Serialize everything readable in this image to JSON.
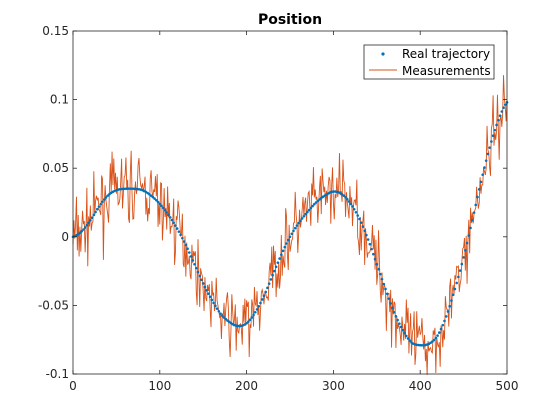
{
  "chart_data": {
    "type": "line",
    "title": "Position",
    "xlabel": "",
    "ylabel": "",
    "xlim": [
      0,
      500
    ],
    "ylim": [
      -0.1,
      0.15
    ],
    "xticks": [
      0,
      100,
      200,
      300,
      400,
      500
    ],
    "yticks": [
      -0.1,
      -0.05,
      0,
      0.05,
      0.1,
      0.15
    ],
    "xtick_labels": [
      "0",
      "100",
      "200",
      "300",
      "400",
      "500"
    ],
    "ytick_labels": [
      "-0.1",
      "-0.05",
      "0",
      "0.05",
      "0.1",
      "0.15"
    ],
    "grid": false,
    "legend_position": "top-right",
    "series": [
      {
        "name": "Real trajectory",
        "style": "dots",
        "color": "#0072BD",
        "x": [
          0,
          10,
          20,
          30,
          40,
          50,
          60,
          70,
          80,
          90,
          100,
          110,
          120,
          130,
          140,
          150,
          160,
          170,
          180,
          190,
          200,
          210,
          220,
          230,
          240,
          250,
          260,
          270,
          280,
          290,
          300,
          310,
          320,
          330,
          340,
          350,
          360,
          370,
          380,
          390,
          400,
          410,
          420,
          430,
          440,
          450,
          460,
          470,
          480,
          490,
          500
        ],
        "y": [
          0.0,
          0.004,
          0.012,
          0.022,
          0.03,
          0.034,
          0.035,
          0.035,
          0.034,
          0.03,
          0.024,
          0.016,
          0.006,
          -0.006,
          -0.02,
          -0.034,
          -0.046,
          -0.056,
          -0.062,
          -0.065,
          -0.063,
          -0.055,
          -0.043,
          -0.028,
          -0.013,
          0.0,
          0.01,
          0.018,
          0.025,
          0.03,
          0.033,
          0.031,
          0.024,
          0.013,
          -0.002,
          -0.02,
          -0.038,
          -0.055,
          -0.068,
          -0.077,
          -0.079,
          -0.078,
          -0.072,
          -0.058,
          -0.038,
          -0.015,
          0.012,
          0.04,
          0.065,
          0.085,
          0.098
        ]
      },
      {
        "name": "Measurements",
        "style": "line",
        "color": "#D95319",
        "noise_amplitude": 0.012,
        "noise_seed": 7
      }
    ]
  }
}
